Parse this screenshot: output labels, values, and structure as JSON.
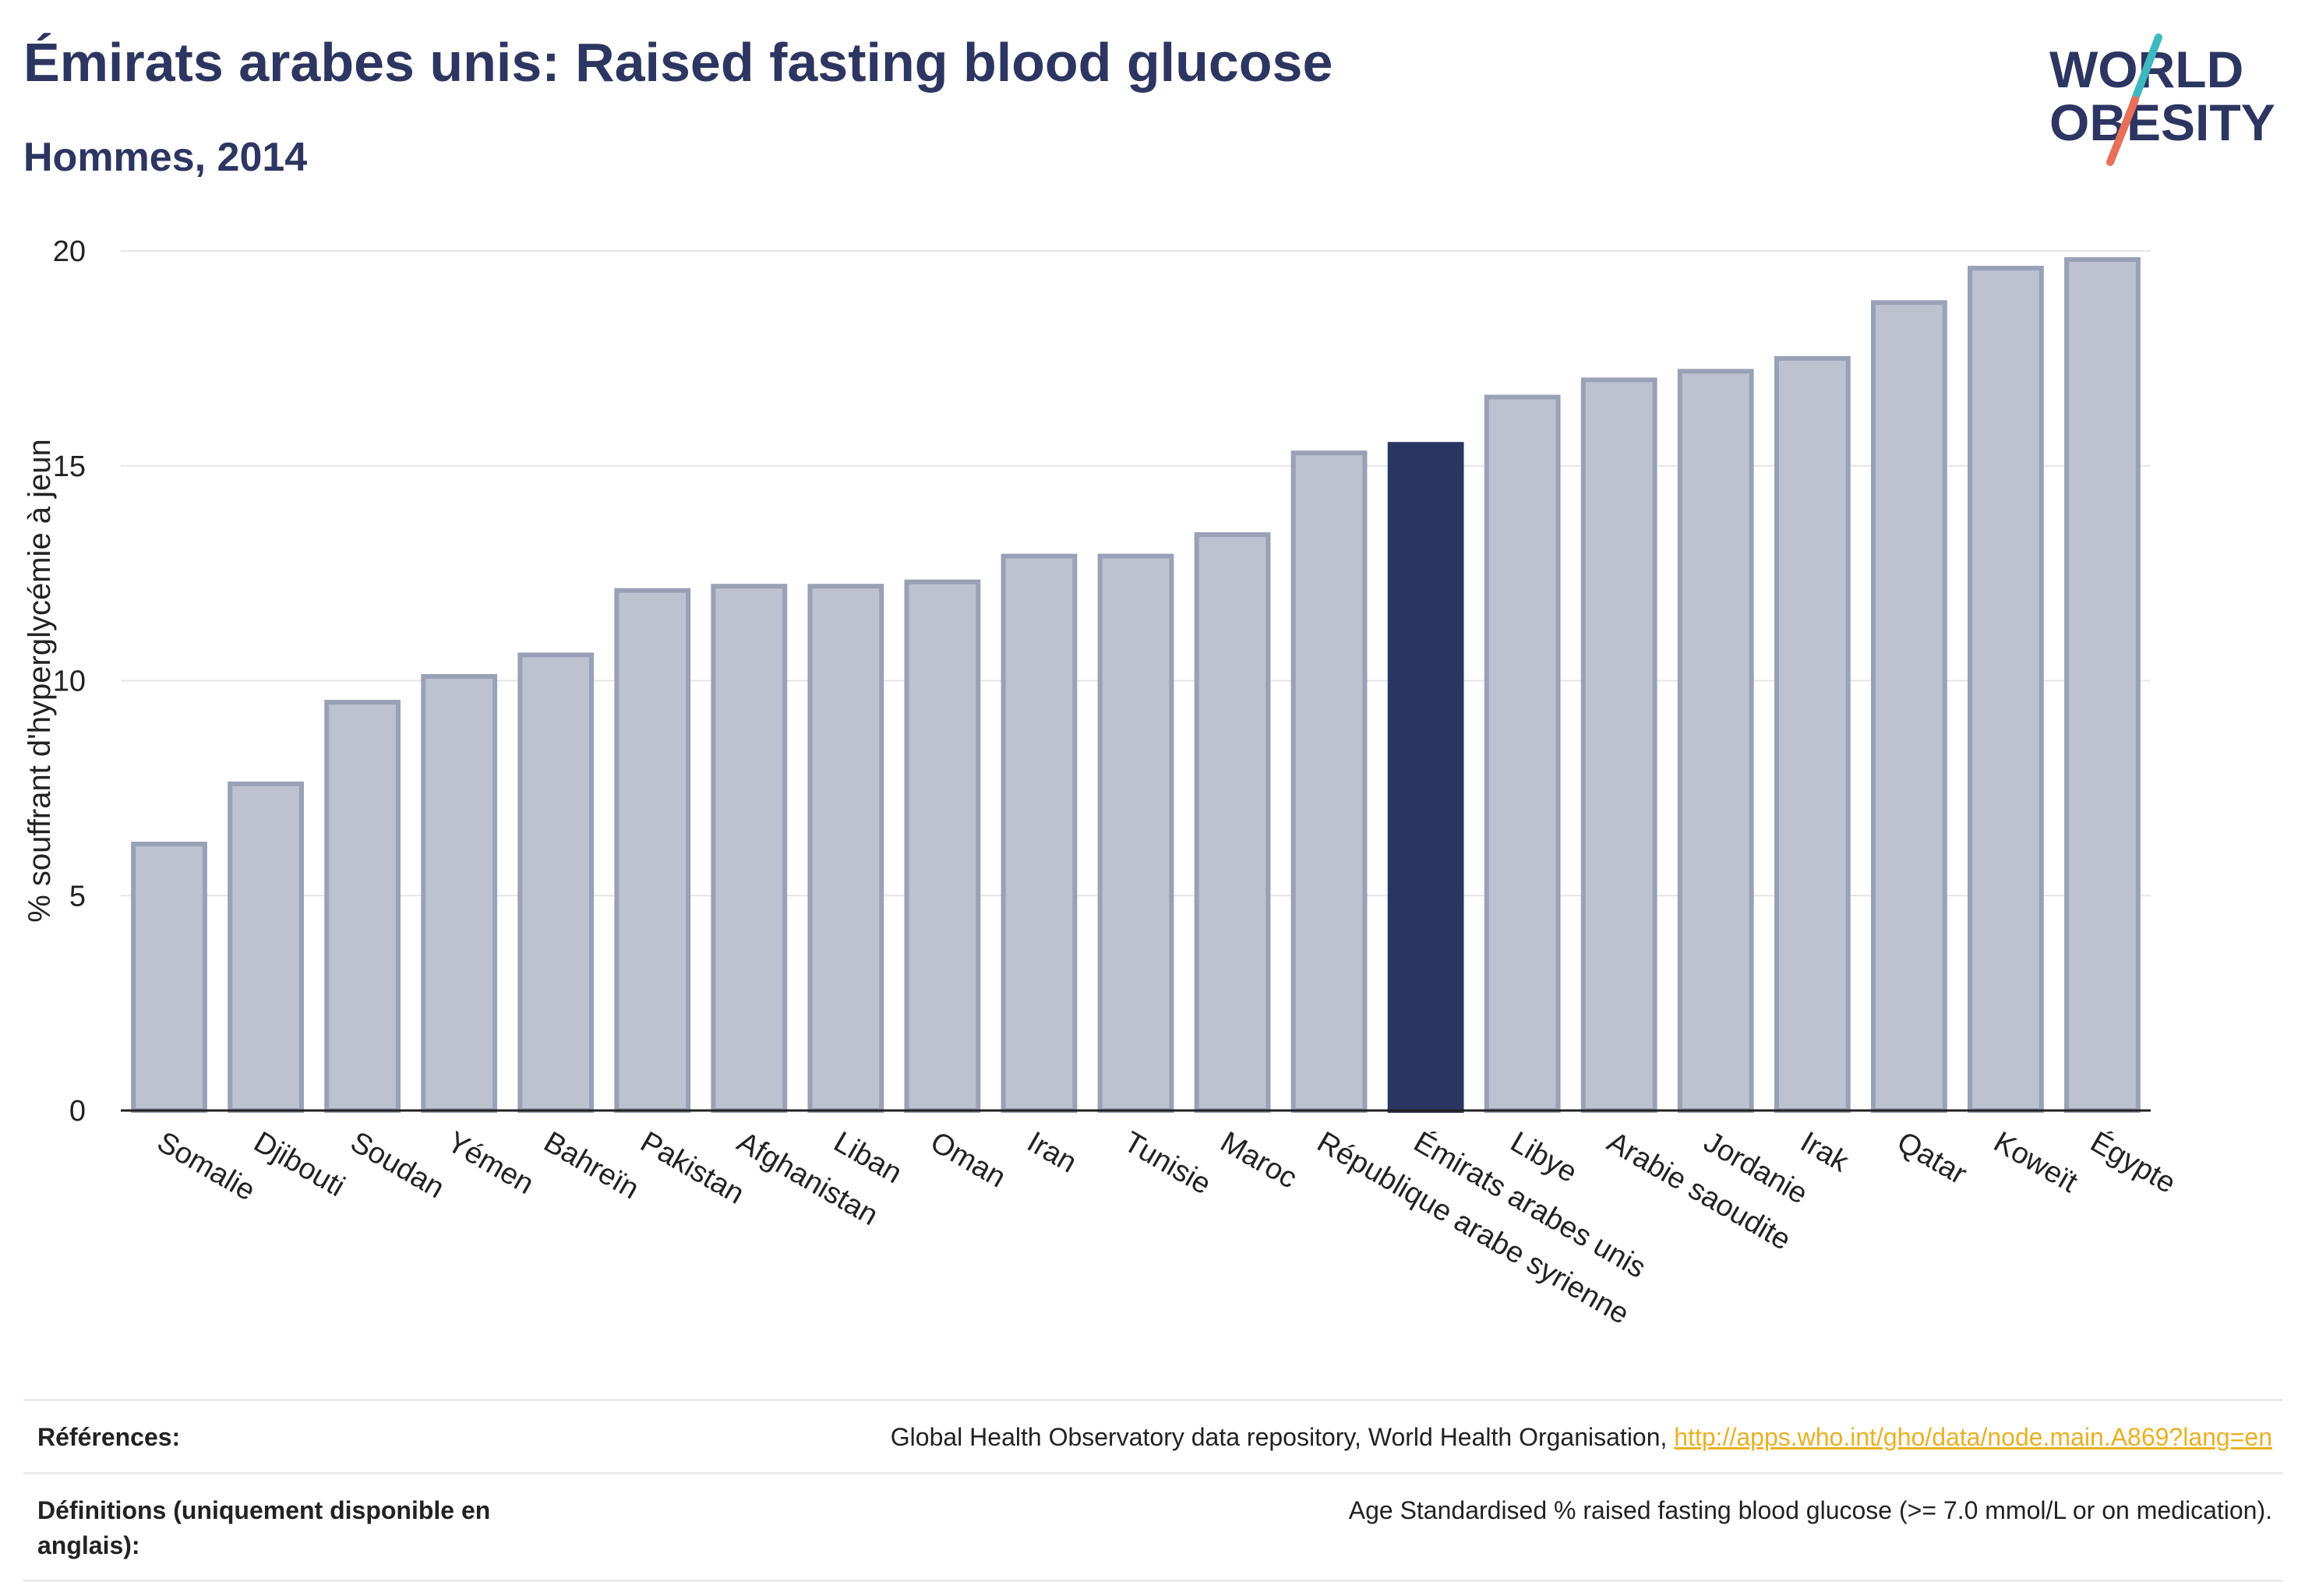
{
  "header": {
    "title": "Émirats arabes unis: Raised fasting blood glucose",
    "subtitle": "Hommes, 2014"
  },
  "logo": {
    "line1": "WORLD",
    "line2": "OBESITY",
    "colors": {
      "navy": "#2d3561",
      "teal": "#3fb8c0",
      "coral": "#e8705a"
    }
  },
  "colors": {
    "bar": "#bec1cf",
    "bar_border": "#9aa0b6",
    "highlight": "#2b3561",
    "grid": "#e6e6e6",
    "axis": "#222222"
  },
  "chart_data": {
    "type": "bar",
    "title": "Émirats arabes unis: Raised fasting blood glucose",
    "subtitle": "Hommes, 2014",
    "ylabel": "% souffrant d'hyperglycémie à jeun",
    "xlabel": "",
    "ylim": [
      0,
      20
    ],
    "yticks": [
      0,
      5,
      10,
      15,
      20
    ],
    "grid": true,
    "highlight": "Émirats arabes unis",
    "categories": [
      "Somalie",
      "Djibouti",
      "Soudan",
      "Yémen",
      "Bahreïn",
      "Pakistan",
      "Afghanistan",
      "Liban",
      "Oman",
      "Iran",
      "Tunisie",
      "Maroc",
      "République arabe syrienne",
      "Émirats arabes unis",
      "Libye",
      "Arabie saoudite",
      "Jordanie",
      "Irak",
      "Qatar",
      "Koweït",
      "Égypte"
    ],
    "values": [
      6.2,
      7.6,
      9.5,
      10.1,
      10.6,
      12.1,
      12.2,
      12.2,
      12.3,
      12.9,
      12.9,
      13.4,
      15.3,
      15.5,
      16.6,
      17.0,
      17.2,
      17.5,
      18.8,
      19.6,
      19.8
    ]
  },
  "footer": {
    "references_label": "Références:",
    "references_text": "Global Health Observatory data repository, World Health Organisation, ",
    "references_link": "http://apps.who.int/gho/data/node.main.A869?lang=en",
    "definitions_label": "Définitions (uniquement disponible en anglais):",
    "definitions_text": "Age Standardised % raised fasting blood glucose (>= 7.0 mmol/L or on medication)."
  }
}
